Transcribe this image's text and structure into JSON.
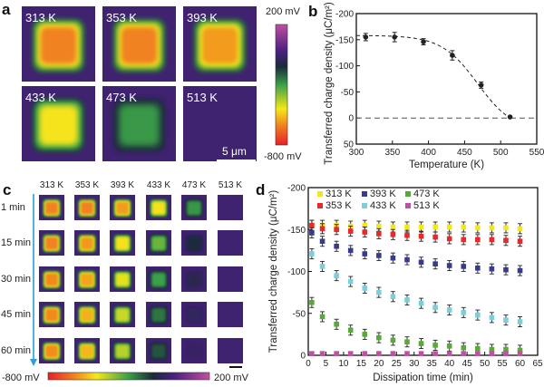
{
  "panel_a": {
    "label": "a",
    "tiles": [
      "313 K",
      "353 K",
      "393 K",
      "433 K",
      "473 K",
      "513 K"
    ],
    "scale_bar": "5 μm",
    "colorbar": {
      "max": "200 mV",
      "min": "-800 mV"
    }
  },
  "panel_c": {
    "label": "c",
    "columns": [
      "313 K",
      "353 K",
      "393 K",
      "433 K",
      "473 K",
      "513 K"
    ],
    "rows": [
      "1 min",
      "15 min",
      "30 min",
      "45 min",
      "60 min"
    ],
    "colorbar": {
      "min": "-800 mV",
      "max": "200 mV"
    },
    "arrow_color": "#2a9fd8"
  },
  "colormap": [
    "#e8202a",
    "#f07a20",
    "#f5e81a",
    "#3aa048",
    "#1b2a3a",
    "#4a2080",
    "#c050a0"
  ],
  "chart_data": [
    {
      "panel_label": "b",
      "type": "scatter",
      "xlabel": "Temperature (K)",
      "ylabel": "Transferred charge density (μC/m²)",
      "xlim": [
        300,
        550
      ],
      "ylim": [
        50,
        -200
      ],
      "x_ticks": [
        "300",
        "350",
        "400",
        "450",
        "500",
        "550"
      ],
      "y_ticks": [
        "-200",
        "-150",
        "-100",
        "-50",
        "0",
        "50"
      ],
      "x": [
        313,
        353,
        393,
        433,
        473,
        513
      ],
      "y": [
        -155,
        -155,
        -146,
        -120,
        -63,
        -2
      ],
      "error": [
        7,
        9,
        6,
        9,
        6,
        1
      ],
      "fit_line": "dashed",
      "reference_line_y": 0,
      "grid": false,
      "marker_color": "#222222"
    },
    {
      "panel_label": "d",
      "type": "scatter",
      "xlabel": "Dissipation time (min)",
      "ylabel": "Transferred charge density (μC/m²)",
      "xlim": [
        0,
        65
      ],
      "ylim": [
        0,
        -200
      ],
      "x_ticks": [
        "0",
        "5",
        "10",
        "15",
        "20",
        "25",
        "30",
        "35",
        "40",
        "45",
        "50",
        "55",
        "60",
        "65"
      ],
      "y_ticks": [
        "-200",
        "-150",
        "-100",
        "-50",
        "0"
      ],
      "x": [
        1,
        4,
        8,
        12,
        16,
        20,
        24,
        28,
        32,
        36,
        40,
        44,
        48,
        52,
        56,
        60
      ],
      "error": 6,
      "grid": false,
      "legend_placement": "top-left",
      "series": [
        {
          "name": "313 K",
          "color": "#f2e620",
          "values": [
            -155,
            -155,
            -155,
            -154,
            -155,
            -154,
            -153,
            -153,
            -153,
            -153,
            -153,
            -153,
            -152,
            -152,
            -152,
            -151
          ]
        },
        {
          "name": "353 K",
          "color": "#e8282a",
          "values": [
            -155,
            -151,
            -150,
            -148,
            -147,
            -145,
            -144,
            -143,
            -142,
            -141,
            -139,
            -138,
            -138,
            -138,
            -137,
            -136
          ]
        },
        {
          "name": "393 K",
          "color": "#3a3a8c",
          "values": [
            -146,
            -136,
            -130,
            -125,
            -121,
            -119,
            -116,
            -114,
            -111,
            -109,
            -107,
            -106,
            -104,
            -103,
            -102,
            -101
          ]
        },
        {
          "name": "433 K",
          "color": "#7ccfd8",
          "values": [
            -121,
            -106,
            -95,
            -88,
            -80,
            -75,
            -70,
            -66,
            -62,
            -57,
            -54,
            -51,
            -48,
            -45,
            -42,
            -40
          ]
        },
        {
          "name": "473 K",
          "color": "#5aa83a",
          "values": [
            -63,
            -46,
            -37,
            -30,
            -25,
            -21,
            -18,
            -16,
            -14,
            -12,
            -11,
            -9,
            -8,
            -7,
            -7,
            -6
          ]
        },
        {
          "name": "513 K",
          "color": "#c050a0",
          "values": [
            -2,
            -2,
            -2,
            -2,
            -2,
            -2,
            -2,
            -2,
            -2,
            -2,
            -2,
            -2,
            -2,
            -2,
            -2,
            -2
          ]
        }
      ]
    }
  ]
}
